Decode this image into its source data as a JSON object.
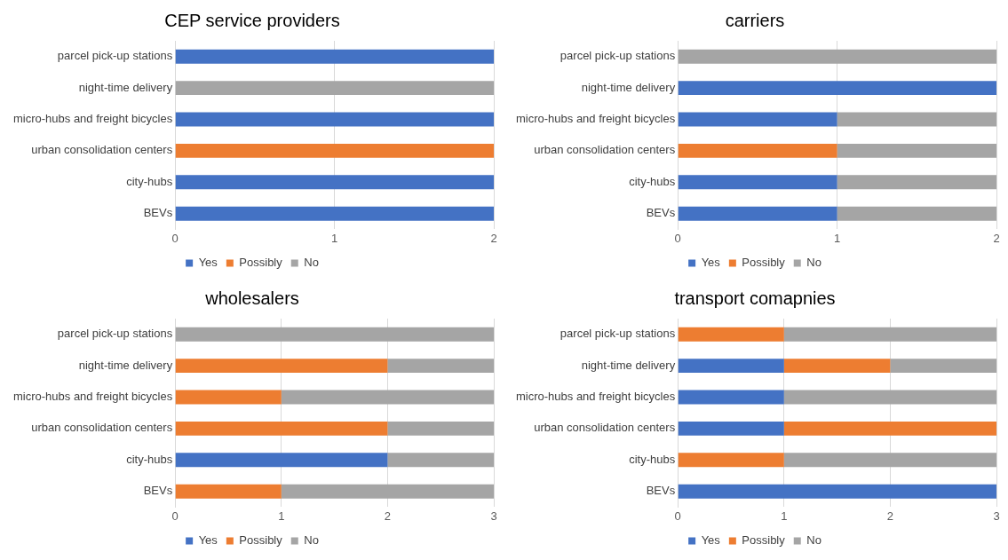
{
  "chart_data": [
    {
      "type": "bar",
      "title": "CEP service providers",
      "orientation": "horizontal",
      "stacked": true,
      "categories": [
        "parcel pick-up stations",
        "night-time delivery",
        "micro-hubs and freight bicycles",
        "urban consolidation centers",
        "city-hubs",
        "BEVs"
      ],
      "series": [
        {
          "name": "Yes",
          "color": "#4472c4",
          "values": [
            2,
            0,
            2,
            0,
            2,
            2
          ]
        },
        {
          "name": "Possibly",
          "color": "#ed7d31",
          "values": [
            0,
            0,
            0,
            2,
            0,
            0
          ]
        },
        {
          "name": "No",
          "color": "#a5a5a5",
          "values": [
            0,
            2,
            0,
            0,
            0,
            0
          ]
        }
      ],
      "xlim": [
        0,
        2
      ],
      "xticks": [
        0,
        1,
        2
      ],
      "grid": "x",
      "legend": "bottom"
    },
    {
      "type": "bar",
      "title": "carriers",
      "orientation": "horizontal",
      "stacked": true,
      "categories": [
        "parcel pick-up stations",
        "night-time delivery",
        "micro-hubs and freight bicycles",
        "urban consolidation centers",
        "city-hubs",
        "BEVs"
      ],
      "series": [
        {
          "name": "Yes",
          "color": "#4472c4",
          "values": [
            0,
            2,
            1,
            0,
            1,
            1
          ]
        },
        {
          "name": "Possibly",
          "color": "#ed7d31",
          "values": [
            0,
            0,
            0,
            1,
            0,
            0
          ]
        },
        {
          "name": "No",
          "color": "#a5a5a5",
          "values": [
            2,
            0,
            1,
            1,
            1,
            1
          ]
        }
      ],
      "xlim": [
        0,
        2
      ],
      "xticks": [
        0,
        1,
        2
      ],
      "grid": "x",
      "legend": "bottom"
    },
    {
      "type": "bar",
      "title": "wholesalers",
      "orientation": "horizontal",
      "stacked": true,
      "categories": [
        "parcel pick-up stations",
        "night-time delivery",
        "micro-hubs and freight bicycles",
        "urban consolidation centers",
        "city-hubs",
        "BEVs"
      ],
      "series": [
        {
          "name": "Yes",
          "color": "#4472c4",
          "values": [
            0,
            0,
            0,
            0,
            2,
            0
          ]
        },
        {
          "name": "Possibly",
          "color": "#ed7d31",
          "values": [
            0,
            2,
            1,
            2,
            0,
            1
          ]
        },
        {
          "name": "No",
          "color": "#a5a5a5",
          "values": [
            3,
            1,
            2,
            1,
            1,
            2
          ]
        }
      ],
      "xlim": [
        0,
        3
      ],
      "xticks": [
        0,
        1,
        2,
        3
      ],
      "grid": "x",
      "legend": "bottom"
    },
    {
      "type": "bar",
      "title": "transport comapnies",
      "orientation": "horizontal",
      "stacked": true,
      "categories": [
        "parcel pick-up stations",
        "night-time delivery",
        "micro-hubs and freight bicycles",
        "urban consolidation centers",
        "city-hubs",
        "BEVs"
      ],
      "series": [
        {
          "name": "Yes",
          "color": "#4472c4",
          "values": [
            0,
            1,
            1,
            1,
            0,
            3
          ]
        },
        {
          "name": "Possibly",
          "color": "#ed7d31",
          "values": [
            1,
            1,
            0,
            2,
            1,
            0
          ]
        },
        {
          "name": "No",
          "color": "#a5a5a5",
          "values": [
            2,
            1,
            2,
            0,
            2,
            0
          ]
        }
      ],
      "xlim": [
        0,
        3
      ],
      "xticks": [
        0,
        1,
        2,
        3
      ],
      "grid": "x",
      "legend": "bottom"
    }
  ]
}
